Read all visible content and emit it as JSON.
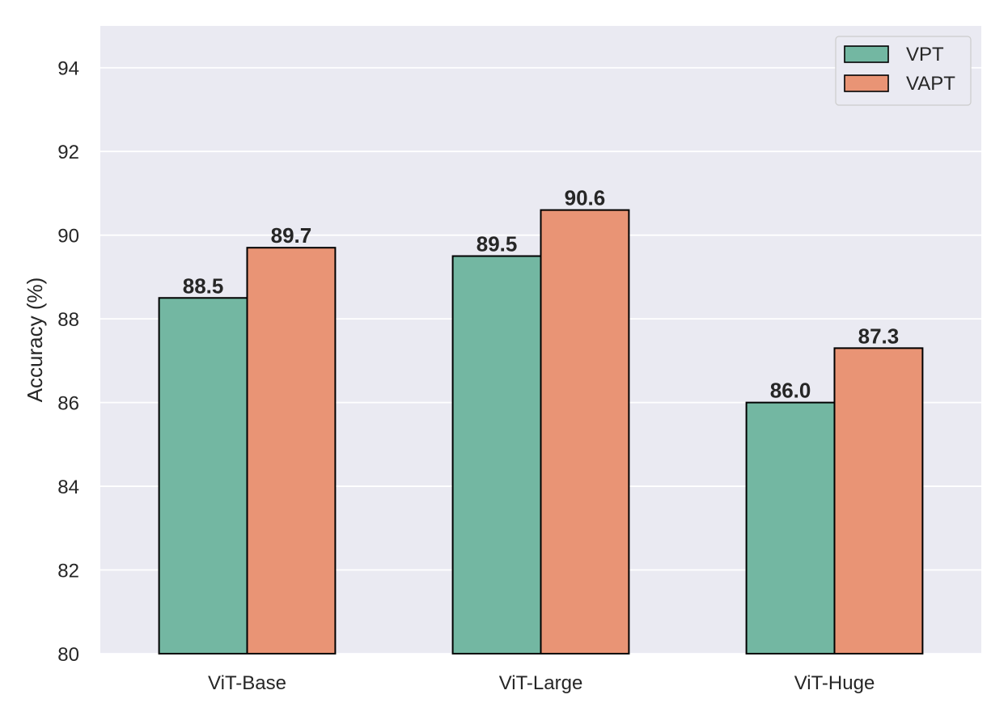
{
  "chart_data": {
    "type": "bar",
    "categories": [
      "ViT-Base",
      "ViT-Large",
      "ViT-Huge"
    ],
    "series": [
      {
        "name": "VPT",
        "values": [
          88.5,
          89.5,
          86.0
        ],
        "labels": [
          "88.5",
          "89.5",
          "86.0"
        ],
        "color": "#73b7a2"
      },
      {
        "name": "VAPT",
        "values": [
          89.7,
          90.6,
          87.3
        ],
        "labels": [
          "89.7",
          "90.6",
          "87.3"
        ],
        "color": "#e99475"
      }
    ],
    "title": "",
    "xlabel": "",
    "ylabel": "Accuracy (%)",
    "ylim": [
      80,
      95
    ],
    "yticks": [
      80,
      82,
      84,
      86,
      88,
      90,
      92,
      94
    ],
    "ytick_labels": [
      "80",
      "82",
      "84",
      "86",
      "88",
      "90",
      "92",
      "94"
    ],
    "grid": true,
    "legend_position": "top-right",
    "plot_background": "#eaeaf2",
    "grid_color": "#ffffff",
    "edge_color": "#000000"
  }
}
